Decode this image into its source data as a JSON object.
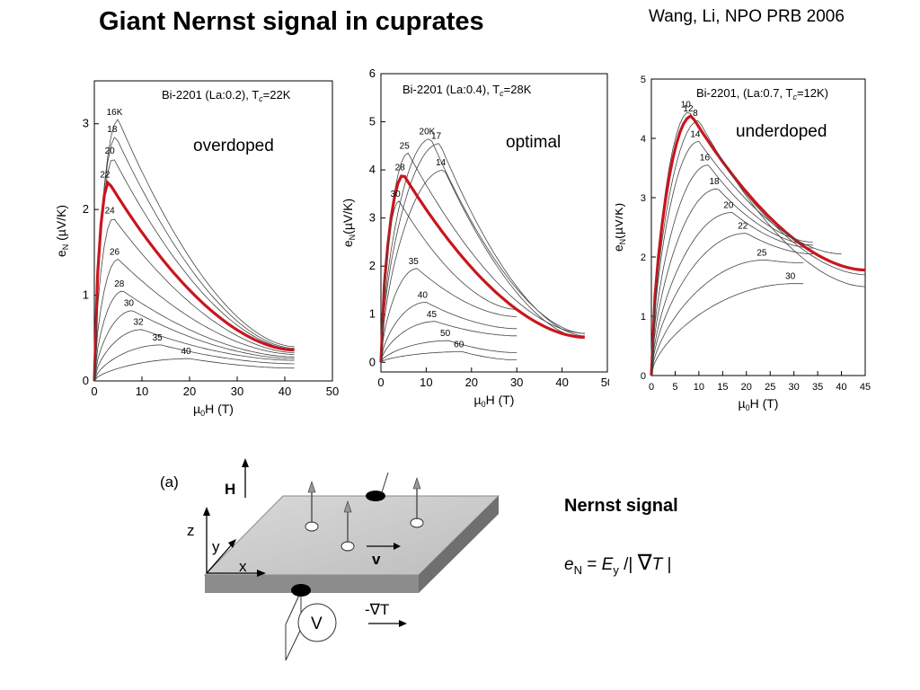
{
  "header": {
    "title": "Giant Nernst signal in cuprates",
    "reference": "Wang, Li, NPO PRB 2006"
  },
  "chart_data": [
    {
      "type": "line",
      "label": "Bi-2201 (La:0.2), T",
      "label_sub": "c",
      "label_rest": "=22K",
      "doping": "overdoped",
      "ylabel": "e",
      "ylabel_sub": "N",
      "ylabel_rest": " (µV/K)",
      "xlabel": "µ",
      "xlabel_sub": "0",
      "xlabel_rest": "H (T)",
      "xlim": [
        0,
        50
      ],
      "ylim": [
        0,
        3.5
      ],
      "xticks": [
        "0",
        "10",
        "20",
        "30",
        "40",
        "50"
      ],
      "yticks": [
        "0",
        "1",
        "2",
        "3"
      ],
      "highlight_color": "#c8161d",
      "series": [
        {
          "label": "16K",
          "peak": [
            5,
            3.05
          ],
          "end": [
            42,
            0.4
          ]
        },
        {
          "label": "18",
          "peak": [
            4.5,
            2.85
          ],
          "end": [
            42,
            0.38
          ]
        },
        {
          "label": "20",
          "peak": [
            4,
            2.6
          ],
          "end": [
            42,
            0.37
          ]
        },
        {
          "label": "22",
          "peak": [
            3,
            2.32
          ],
          "end": [
            42,
            0.36
          ],
          "highlight": true
        },
        {
          "label": "24",
          "peak": [
            4,
            1.9
          ],
          "end": [
            42,
            0.33
          ]
        },
        {
          "label": "26",
          "peak": [
            5,
            1.42
          ],
          "end": [
            42,
            0.31
          ]
        },
        {
          "label": "28",
          "peak": [
            6,
            1.05
          ],
          "end": [
            42,
            0.28
          ]
        },
        {
          "label": "30",
          "peak": [
            8,
            0.82
          ],
          "end": [
            42,
            0.26
          ]
        },
        {
          "label": "32",
          "peak": [
            10,
            0.6
          ],
          "end": [
            42,
            0.24
          ]
        },
        {
          "label": "35",
          "peak": [
            14,
            0.42
          ],
          "end": [
            42,
            0.2
          ]
        },
        {
          "label": "40",
          "peak": [
            20,
            0.26
          ],
          "end": [
            42,
            0.15
          ]
        }
      ]
    },
    {
      "type": "line",
      "label": "Bi-2201 (La:0.4), T",
      "label_sub": "c",
      "label_rest": "=28K",
      "doping": "optimal",
      "ylabel": "e",
      "ylabel_sub": "N",
      "ylabel_rest": "(µV/K)",
      "xlabel": "µ",
      "xlabel_sub": "0",
      "xlabel_rest": "H (T)",
      "xlim": [
        0,
        50
      ],
      "ylim": [
        -0.2,
        6
      ],
      "xticks": [
        "0",
        "10",
        "20",
        "30",
        "40",
        "50"
      ],
      "yticks": [
        "0",
        "1",
        "2",
        "3",
        "4",
        "5",
        "6"
      ],
      "highlight_color": "#c8161d",
      "series": [
        {
          "label": "20K",
          "peak": [
            11,
            4.65
          ],
          "end": [
            45,
            0.6
          ]
        },
        {
          "label": "17",
          "peak": [
            13,
            4.55
          ],
          "end": [
            45,
            0.55
          ]
        },
        {
          "label": "25",
          "peak": [
            6,
            4.35
          ],
          "end": [
            45,
            0.6
          ]
        },
        {
          "label": "14",
          "peak": [
            14,
            4.0
          ],
          "end": [
            45,
            0.5
          ]
        },
        {
          "label": "28",
          "peak": [
            5,
            3.9
          ],
          "end": [
            45,
            0.52
          ],
          "highlight": true
        },
        {
          "label": "30",
          "peak": [
            4,
            3.35
          ],
          "end": [
            30,
            1.1
          ]
        },
        {
          "label": "35",
          "peak": [
            8,
            1.95
          ],
          "end": [
            30,
            0.95
          ]
        },
        {
          "label": "40",
          "peak": [
            10,
            1.25
          ],
          "end": [
            30,
            0.7
          ]
        },
        {
          "label": "45",
          "peak": [
            12,
            0.85
          ],
          "end": [
            30,
            0.55
          ]
        },
        {
          "label": "50",
          "peak": [
            15,
            0.45
          ],
          "end": [
            30,
            0.2
          ]
        },
        {
          "label": "60",
          "peak": [
            18,
            0.22
          ],
          "end": [
            30,
            0.05
          ]
        }
      ]
    },
    {
      "type": "line",
      "label": "Bi-2201, (La:0.7, T",
      "label_sub": "c",
      "label_rest": "=12K)",
      "doping": "underdoped",
      "ylabel": "e",
      "ylabel_sub": "N",
      "ylabel_rest": "(µV/K)",
      "xlabel": "µ",
      "xlabel_sub": "0",
      "xlabel_rest": "H (T)",
      "xlim": [
        0,
        45
      ],
      "ylim": [
        0,
        5
      ],
      "xticks": [
        "0",
        "5",
        "10",
        "15",
        "20",
        "25",
        "30",
        "35",
        "40",
        "45"
      ],
      "yticks": [
        "0",
        "1",
        "2",
        "3",
        "4",
        "5"
      ],
      "highlight_color": "#c8161d",
      "series": [
        {
          "label": "10",
          "peak": [
            8,
            4.45
          ],
          "end": [
            45,
            1.7
          ]
        },
        {
          "label": "12",
          "peak": [
            8.5,
            4.38
          ],
          "end": [
            45,
            1.78
          ],
          "highlight": true
        },
        {
          "label": "14",
          "peak": [
            10,
            3.95
          ],
          "end": [
            40,
            2.05
          ]
        },
        {
          "label": "16",
          "peak": [
            12,
            3.55
          ],
          "end": [
            34,
            2.25
          ]
        },
        {
          "label": "18",
          "peak": [
            14,
            3.15
          ],
          "end": [
            34,
            2.2
          ]
        },
        {
          "label": "20",
          "peak": [
            17,
            2.75
          ],
          "end": [
            34,
            2.15
          ]
        },
        {
          "label": "22",
          "peak": [
            20,
            2.4
          ],
          "end": [
            34,
            2.05
          ]
        },
        {
          "label": "25",
          "peak": [
            24,
            1.95
          ],
          "end": [
            32,
            1.9
          ]
        },
        {
          "label": "30",
          "peak": [
            30,
            1.55
          ],
          "end": [
            32,
            1.55
          ]
        },
        {
          "label": "8",
          "peak": [
            10,
            4.3
          ],
          "end": [
            45,
            1.5
          ]
        }
      ]
    }
  ],
  "diagram": {
    "label_a": "(a)",
    "label_H": "H",
    "label_z": "z",
    "label_y": "y",
    "label_x": "x",
    "label_v": "v",
    "label_V": "V",
    "label_gradT": "-∇T"
  },
  "formula": {
    "heading": "Nernst signal",
    "e": "e",
    "e_sub": "N",
    "eq": " = ",
    "E": "E",
    "E_sub": "y",
    "div": " /| ",
    "nabla": "∇",
    "T": "T",
    "close": " |"
  }
}
